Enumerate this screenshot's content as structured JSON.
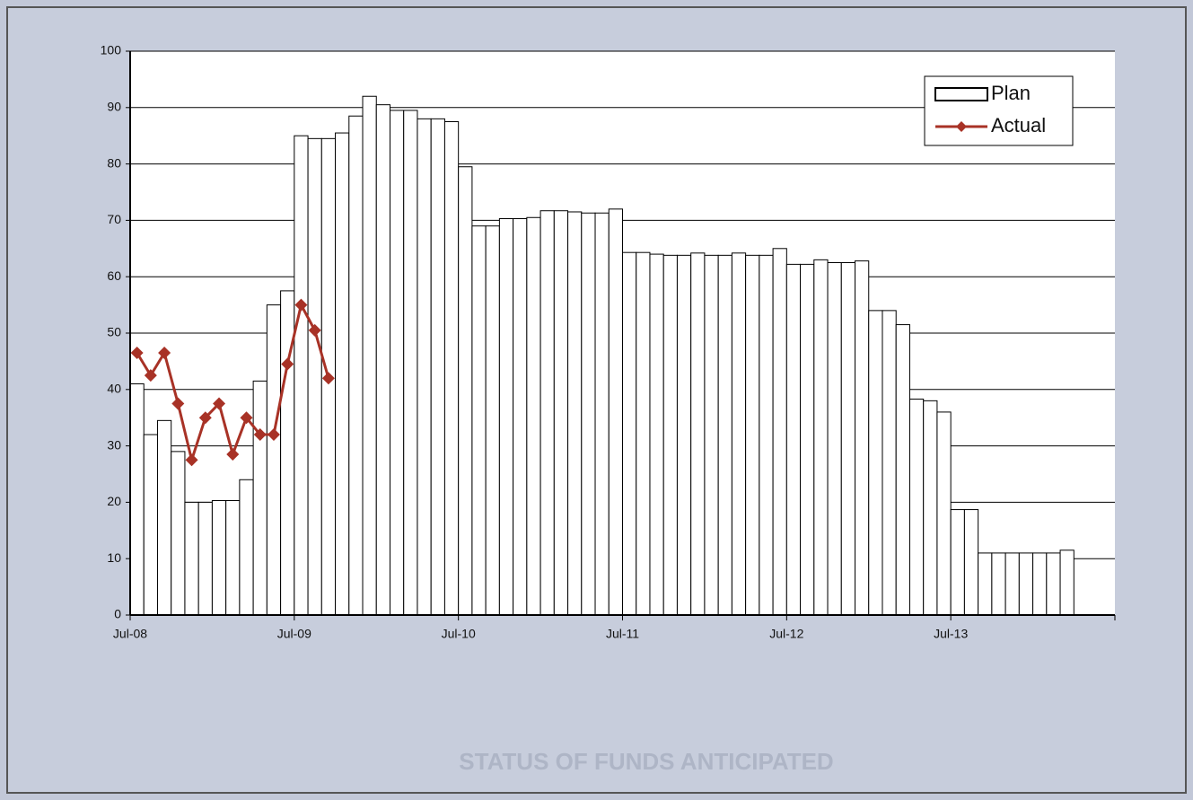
{
  "chart_data": {
    "type": "bar_line",
    "annotation": "STATUS OF FUNDS ANTICIPATED",
    "categories": [
      "Jul-08",
      null,
      null,
      null,
      null,
      null,
      null,
      null,
      null,
      null,
      null,
      null,
      "Jul-09",
      null,
      null,
      null,
      null,
      null,
      null,
      null,
      null,
      null,
      null,
      null,
      "Jul-10",
      null,
      null,
      null,
      null,
      null,
      null,
      null,
      null,
      null,
      null,
      null,
      "Jul-11",
      null,
      null,
      null,
      null,
      null,
      null,
      null,
      null,
      null,
      null,
      null,
      "Jul-12",
      null,
      null,
      null,
      null,
      null,
      null,
      null,
      null,
      null,
      null,
      null,
      "Jul-13",
      null,
      null,
      null,
      null,
      null,
      null,
      null,
      null,
      null,
      null,
      null
    ],
    "series": [
      {
        "name": "Plan",
        "kind": "bar",
        "color": "#ffffff",
        "values": [
          41,
          32,
          34.5,
          29,
          20,
          20,
          20.3,
          20.3,
          24,
          41.5,
          55,
          57.5,
          85,
          84.5,
          84.5,
          85.5,
          88.5,
          92,
          90.5,
          89.5,
          89.5,
          88,
          88,
          87.5,
          79.5,
          69,
          69,
          70.3,
          70.3,
          70.5,
          71.7,
          71.7,
          71.5,
          71.3,
          71.3,
          72,
          64.3,
          64.3,
          64,
          63.8,
          63.8,
          64.2,
          63.8,
          63.8,
          64.2,
          63.8,
          63.8,
          65,
          62.2,
          62.2,
          63,
          62.5,
          62.5,
          62.8,
          54,
          54,
          51.5,
          38.3,
          38,
          36,
          18.7,
          18.7,
          11,
          11,
          11,
          11,
          11,
          11,
          11.5,
          null,
          null,
          null
        ]
      },
      {
        "name": "Actual",
        "kind": "line",
        "color": "#a83226",
        "values": [
          46.5,
          42.5,
          46.5,
          37.5,
          27.5,
          35,
          37.5,
          28.5,
          35,
          32,
          32,
          44.5,
          55,
          50.5,
          42,
          null,
          null,
          null,
          null,
          null,
          null,
          null,
          null,
          null,
          null,
          null,
          null,
          null,
          null,
          null,
          null,
          null,
          null,
          null,
          null,
          null,
          null,
          null,
          null,
          null,
          null,
          null,
          null,
          null,
          null,
          null,
          null,
          null,
          null,
          null,
          null,
          null,
          null,
          null,
          null,
          null,
          null,
          null,
          null,
          null,
          null,
          null,
          null,
          null,
          null,
          null,
          null,
          null,
          null,
          null,
          null,
          null
        ]
      }
    ],
    "ylim": [
      0,
      100
    ],
    "yticks": [
      0,
      10,
      20,
      30,
      40,
      50,
      60,
      70,
      80,
      90,
      100
    ],
    "grid": true,
    "legend": "top-right"
  }
}
